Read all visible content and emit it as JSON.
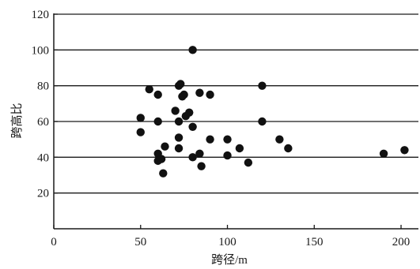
{
  "chart_data": {
    "type": "scatter",
    "title": "",
    "xlabel": "跨径",
    "xlabel_unit": "/m",
    "ylabel": "跨高比",
    "xlim": [
      0,
      210
    ],
    "ylim": [
      0,
      120
    ],
    "xticks": [
      "0",
      "50",
      "100",
      "150",
      "200"
    ],
    "yticks": [
      "20",
      "40",
      "60",
      "80",
      "100",
      "120"
    ],
    "grid": "horizontal",
    "legend": "none",
    "marker_color": "#111111",
    "points": [
      {
        "x": 80,
        "y": 100
      },
      {
        "x": 55,
        "y": 78
      },
      {
        "x": 72,
        "y": 80
      },
      {
        "x": 73,
        "y": 81
      },
      {
        "x": 120,
        "y": 80
      },
      {
        "x": 60,
        "y": 75
      },
      {
        "x": 74,
        "y": 74
      },
      {
        "x": 75,
        "y": 75
      },
      {
        "x": 84,
        "y": 76
      },
      {
        "x": 90,
        "y": 75
      },
      {
        "x": 50,
        "y": 62
      },
      {
        "x": 70,
        "y": 66
      },
      {
        "x": 76,
        "y": 63
      },
      {
        "x": 78,
        "y": 65
      },
      {
        "x": 60,
        "y": 60
      },
      {
        "x": 72,
        "y": 60
      },
      {
        "x": 80,
        "y": 57
      },
      {
        "x": 120,
        "y": 60
      },
      {
        "x": 50,
        "y": 54
      },
      {
        "x": 72,
        "y": 51
      },
      {
        "x": 90,
        "y": 50
      },
      {
        "x": 100,
        "y": 50
      },
      {
        "x": 130,
        "y": 50
      },
      {
        "x": 64,
        "y": 46
      },
      {
        "x": 72,
        "y": 45
      },
      {
        "x": 107,
        "y": 45
      },
      {
        "x": 135,
        "y": 45
      },
      {
        "x": 60,
        "y": 42
      },
      {
        "x": 84,
        "y": 42
      },
      {
        "x": 100,
        "y": 41
      },
      {
        "x": 62,
        "y": 39
      },
      {
        "x": 60,
        "y": 38
      },
      {
        "x": 80,
        "y": 40
      },
      {
        "x": 112,
        "y": 37
      },
      {
        "x": 85,
        "y": 35
      },
      {
        "x": 63,
        "y": 31
      },
      {
        "x": 190,
        "y": 42
      },
      {
        "x": 202,
        "y": 44
      }
    ]
  }
}
